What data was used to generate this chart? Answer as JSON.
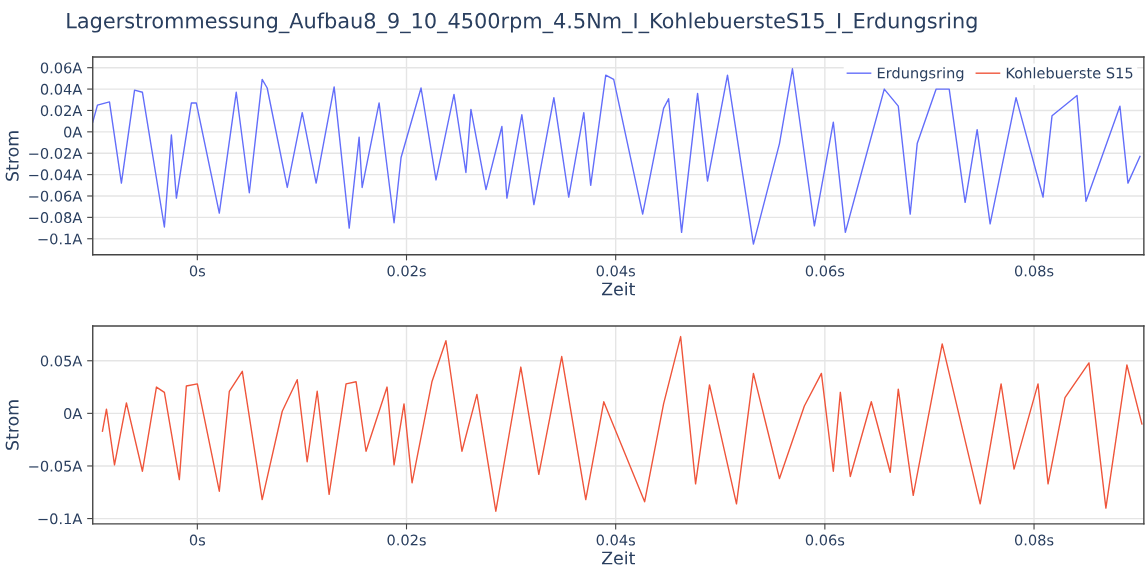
{
  "chart_data": [
    {
      "type": "line",
      "title": "Lagerstrommessung_Aufbau8_9_10_4500rpm_4.5Nm_I_KohlebuersteS15_I_Erdungsring",
      "xlabel": "Zeit",
      "ylabel": "Strom",
      "grid": true,
      "legend": "top right",
      "xlim": [
        -0.01,
        0.0905
      ],
      "ylim": [
        -0.115,
        0.07
      ],
      "xticks": [
        {
          "value": 0,
          "label": "0s"
        },
        {
          "value": 0.02,
          "label": "0.02s"
        },
        {
          "value": 0.04,
          "label": "0.04s"
        },
        {
          "value": 0.06,
          "label": "0.06s"
        },
        {
          "value": 0.08,
          "label": "0.08s"
        }
      ],
      "yticks": [
        {
          "value": -0.1,
          "label": "−0.1A"
        },
        {
          "value": -0.08,
          "label": "−0.08A"
        },
        {
          "value": -0.06,
          "label": "−0.06A"
        },
        {
          "value": -0.04,
          "label": "−0.04A"
        },
        {
          "value": -0.02,
          "label": "−0.02A"
        },
        {
          "value": 0,
          "label": "0A"
        },
        {
          "value": 0.02,
          "label": "0.02A"
        },
        {
          "value": 0.04,
          "label": "0.04A"
        },
        {
          "value": 0.06,
          "label": "0.06A"
        }
      ],
      "series": [
        {
          "name": "Erdungsring",
          "color": "#636efa",
          "x": [
            -0.01,
            -0.00955,
            -0.0084,
            -0.00726,
            -0.006,
            -0.00525,
            -0.00315,
            -0.00248,
            -0.002,
            -0.00057,
            -0.0001,
            0.0021,
            0.00372,
            0.00497,
            0.0062,
            0.00668,
            0.0086,
            0.01003,
            0.01136,
            0.01308,
            0.01452,
            0.01547,
            0.01576,
            0.01738,
            0.01881,
            0.01948,
            0.02139,
            0.02282,
            0.02454,
            0.02568,
            0.02616,
            0.0276,
            0.02912,
            0.0296,
            0.03103,
            0.03218,
            0.03409,
            0.03551,
            0.03695,
            0.03761,
            0.03905,
            0.03981,
            0.04258,
            0.04458,
            0.04506,
            0.0463,
            0.04783,
            0.04878,
            0.05069,
            0.05317,
            0.05566,
            0.0569,
            0.059,
            0.06081,
            0.06196,
            0.06348,
            0.06568,
            0.06702,
            0.06816,
            0.06883,
            0.07064,
            0.07189,
            0.07341,
            0.07456,
            0.0758,
            0.07828,
            0.08086,
            0.08172,
            0.08411,
            0.08497,
            0.08821,
            0.08898,
            0.09013
          ],
          "values": [
            0.009,
            0.025,
            0.028,
            -0.048,
            0.039,
            0.037,
            -0.089,
            -0.003,
            -0.062,
            0.027,
            0.027,
            -0.076,
            0.037,
            -0.057,
            0.049,
            0.041,
            -0.052,
            0.018,
            -0.048,
            0.042,
            -0.09,
            -0.005,
            -0.052,
            0.027,
            -0.085,
            -0.024,
            0.041,
            -0.045,
            0.035,
            -0.038,
            0.021,
            -0.054,
            0.005,
            -0.062,
            0.016,
            -0.068,
            0.032,
            -0.061,
            0.018,
            -0.05,
            0.053,
            0.049,
            -0.077,
            0.022,
            0.031,
            -0.094,
            0.036,
            -0.046,
            0.053,
            -0.105,
            -0.011,
            0.059,
            -0.088,
            0.009,
            -0.094,
            -0.039,
            0.04,
            0.024,
            -0.077,
            -0.011,
            0.04,
            0.04,
            -0.066,
            0.002,
            -0.086,
            0.032,
            -0.061,
            0.015,
            0.034,
            -0.065,
            0.024,
            -0.048,
            -0.023
          ]
        }
      ]
    },
    {
      "type": "line",
      "xlabel": "Zeit",
      "ylabel": "Strom",
      "grid": true,
      "xlim": [
        -0.01,
        0.0905
      ],
      "ylim": [
        -0.105,
        0.083
      ],
      "xticks": [
        {
          "value": 0,
          "label": "0s"
        },
        {
          "value": 0.02,
          "label": "0.02s"
        },
        {
          "value": 0.04,
          "label": "0.04s"
        },
        {
          "value": 0.06,
          "label": "0.06s"
        },
        {
          "value": 0.08,
          "label": "0.08s"
        }
      ],
      "yticks": [
        {
          "value": -0.1,
          "label": "−0.1A"
        },
        {
          "value": -0.05,
          "label": "−0.05A"
        },
        {
          "value": 0,
          "label": "0A"
        },
        {
          "value": 0.05,
          "label": "0.05A"
        }
      ],
      "series": [
        {
          "name": "Kohlebuerste S15",
          "color": "#ef553b",
          "x": [
            -0.00907,
            -0.00869,
            -0.00792,
            -0.00678,
            -0.00525,
            -0.00391,
            -0.00315,
            -0.00172,
            -0.00105,
            0.0,
            0.0021,
            0.00306,
            0.0043,
            0.0062,
            0.00812,
            0.00955,
            0.0105,
            0.01146,
            0.0126,
            0.01422,
            0.01518,
            0.01613,
            0.01814,
            0.01881,
            0.01976,
            0.02053,
            0.02243,
            0.02377,
            0.0253,
            0.02673,
            0.02854,
            0.03093,
            0.03265,
            0.03484,
            0.03714,
            0.03886,
            0.04277,
            0.04458,
            0.04621,
            0.04764,
            0.04897,
            0.05155,
            0.05317,
            0.05566,
            0.05804,
            0.05967,
            0.06081,
            0.06148,
            0.06243,
            0.06444,
            0.06625,
            0.06702,
            0.06845,
            0.07122,
            0.07485,
            0.07685,
            0.07809,
            0.08038,
            0.08134,
            0.08296,
            0.08525,
            0.08687,
            0.08888,
            0.09031
          ],
          "values": [
            -0.017,
            0.004,
            -0.049,
            0.01,
            -0.055,
            0.025,
            0.02,
            -0.063,
            0.026,
            0.028,
            -0.074,
            0.021,
            0.04,
            -0.082,
            0.002,
            0.032,
            -0.046,
            0.021,
            -0.077,
            0.028,
            0.03,
            -0.036,
            0.025,
            -0.049,
            0.009,
            -0.066,
            0.03,
            0.069,
            -0.036,
            0.018,
            -0.093,
            0.044,
            -0.058,
            0.054,
            -0.082,
            0.011,
            -0.084,
            0.009,
            0.073,
            -0.067,
            0.027,
            -0.086,
            0.038,
            -0.062,
            0.007,
            0.038,
            -0.055,
            0.02,
            -0.06,
            0.011,
            -0.056,
            0.023,
            -0.078,
            0.066,
            -0.086,
            0.028,
            -0.053,
            0.028,
            -0.067,
            0.015,
            0.048,
            -0.09,
            0.046,
            -0.01
          ]
        }
      ]
    }
  ]
}
